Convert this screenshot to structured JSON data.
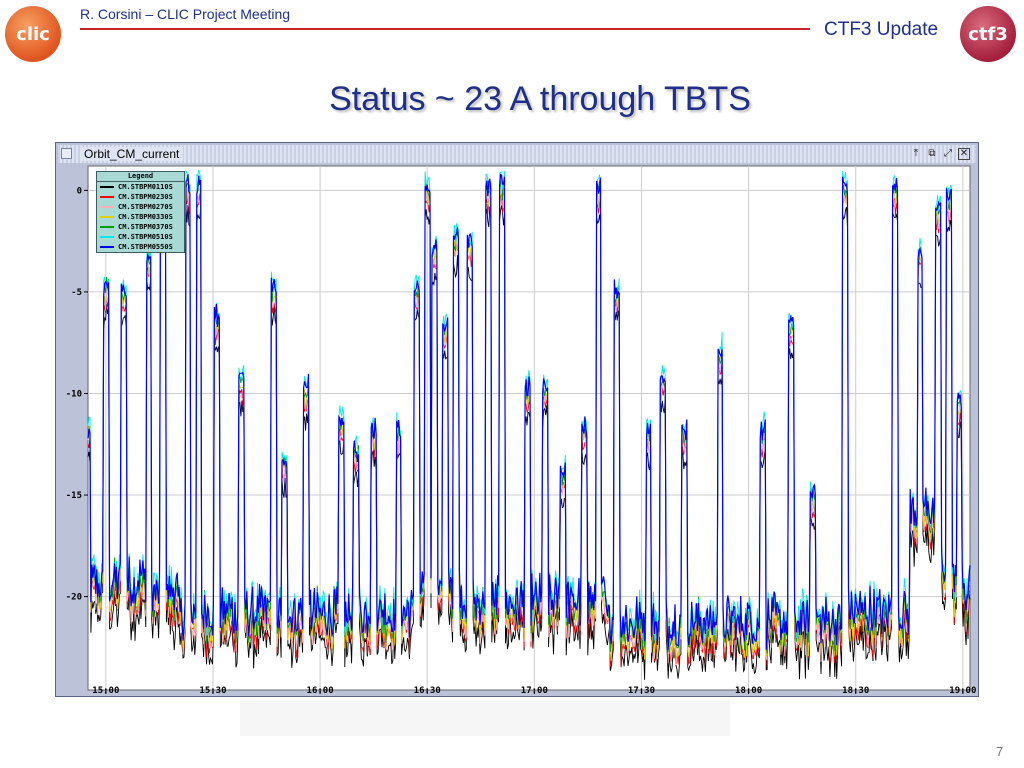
{
  "header": {
    "left_text": "R. Corsini – CLIC Project Meeting",
    "right_text": "CTF3 Update"
  },
  "logos": {
    "left": "clic",
    "right": "ctf3"
  },
  "slide": {
    "title": "Status ~ 23 A through TBTS",
    "page_number": "7"
  },
  "window": {
    "title": "Orbit_CM_current",
    "icons": [
      "pin-icon",
      "restore-icon",
      "maximize-icon",
      "close-icon"
    ]
  },
  "colors": {
    "accent_red": "#c8232c",
    "title_blue": "#1f2f8a"
  },
  "chart_data": {
    "type": "line",
    "title": "",
    "xlabel": "",
    "ylabel": "",
    "x_ticks": [
      "15:00",
      "15:30",
      "16:00",
      "16:30",
      "17:00",
      "17:30",
      "18:00",
      "18:30",
      "19:00"
    ],
    "y_ticks": [
      0,
      -5,
      -10,
      -15,
      -20
    ],
    "xlim": [
      "14:55",
      "19:02"
    ],
    "ylim": [
      -24.6,
      1.2
    ],
    "grid": true,
    "legend_title": "Legend",
    "legend_position": "top-left",
    "series": [
      {
        "name": "CM.STBPM0110S",
        "color": "#000000"
      },
      {
        "name": "CM.STBPM0230S",
        "color": "#ff0000"
      },
      {
        "name": "CM.STBPM0270S",
        "color": "#ffb0b0"
      },
      {
        "name": "CM.STBPM0330S",
        "color": "#e0d000"
      },
      {
        "name": "CM.STBPM0370S",
        "color": "#00a000"
      },
      {
        "name": "CM.STBPM0510S",
        "color": "#00e8e8"
      },
      {
        "name": "CM.STBPM0550S",
        "color": "#0000ff"
      }
    ],
    "baseline_segments": [
      {
        "start": "14:55",
        "end": "15:12",
        "level": -19.5
      },
      {
        "start": "15:12",
        "end": "15:20",
        "level": -20
      },
      {
        "start": "15:20",
        "end": "16:28",
        "level": -21
      },
      {
        "start": "16:28",
        "end": "16:40",
        "level": -20
      },
      {
        "start": "16:40",
        "end": "17:20",
        "level": -20.5
      },
      {
        "start": "17:20",
        "end": "18:27",
        "level": -21.5
      },
      {
        "start": "18:27",
        "end": "18:45",
        "level": -21
      },
      {
        "start": "18:45",
        "end": "18:53",
        "level": -16
      },
      {
        "start": "18:53",
        "end": "18:57",
        "level": -19
      },
      {
        "start": "18:57",
        "end": "19:02",
        "level": -20
      }
    ],
    "spikes": [
      {
        "time": "14:55",
        "level": -12
      },
      {
        "time": "15:00",
        "level": -5
      },
      {
        "time": "15:05",
        "level": -5.2
      },
      {
        "time": "15:12",
        "level": -3.5
      },
      {
        "time": "15:16",
        "level": 0
      },
      {
        "time": "15:23",
        "level": 0
      },
      {
        "time": "15:26",
        "level": 0
      },
      {
        "time": "15:31",
        "level": -6.5
      },
      {
        "time": "15:38",
        "level": -9.5
      },
      {
        "time": "15:47",
        "level": -5
      },
      {
        "time": "15:50",
        "level": -13.5
      },
      {
        "time": "15:56",
        "level": -10
      },
      {
        "time": "16:06",
        "level": -11.5
      },
      {
        "time": "16:10",
        "level": -13
      },
      {
        "time": "16:15",
        "level": -12
      },
      {
        "time": "16:22",
        "level": -12
      },
      {
        "time": "16:27",
        "level": -5
      },
      {
        "time": "16:30",
        "level": 0
      },
      {
        "time": "16:32",
        "level": -3
      },
      {
        "time": "16:35",
        "level": -7
      },
      {
        "time": "16:38",
        "level": -2.5
      },
      {
        "time": "16:42",
        "level": -3
      },
      {
        "time": "16:47",
        "level": 0
      },
      {
        "time": "16:51",
        "level": 0
      },
      {
        "time": "16:58",
        "level": -10
      },
      {
        "time": "17:03",
        "level": -10
      },
      {
        "time": "17:08",
        "level": -14
      },
      {
        "time": "17:14",
        "level": -12
      },
      {
        "time": "17:18",
        "level": 0
      },
      {
        "time": "17:23",
        "level": -5
      },
      {
        "time": "17:32",
        "level": -12
      },
      {
        "time": "17:36",
        "level": -9.5
      },
      {
        "time": "17:42",
        "level": -12
      },
      {
        "time": "17:52",
        "level": -8
      },
      {
        "time": "18:04",
        "level": -12
      },
      {
        "time": "18:12",
        "level": -7
      },
      {
        "time": "18:18",
        "level": -15
      },
      {
        "time": "18:27",
        "level": 0
      },
      {
        "time": "18:41",
        "level": 0
      },
      {
        "time": "18:48",
        "level": -3.5
      },
      {
        "time": "18:53",
        "level": -1
      },
      {
        "time": "18:56",
        "level": -0.5
      },
      {
        "time": "18:59",
        "level": -10.5
      }
    ]
  }
}
